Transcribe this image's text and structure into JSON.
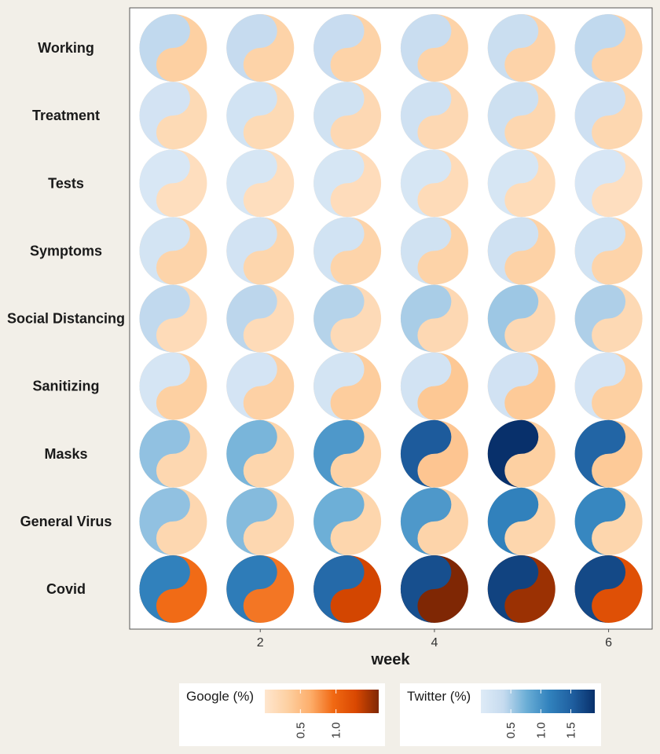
{
  "chart_data": {
    "type": "heatmap",
    "glyph": "yin-yang (left half = Twitter, right half = Google)",
    "xlabel": "week",
    "x": [
      1,
      2,
      3,
      4,
      5,
      6
    ],
    "x_ticks": [
      "2",
      "4",
      "6"
    ],
    "rows": [
      "Working",
      "Treatment",
      "Tests",
      "Symptoms",
      "Social Distancing",
      "Sanitizing",
      "Masks",
      "General Virus",
      "Covid"
    ],
    "series": [
      {
        "name": "Twitter (%)",
        "color_low": "#deebf7",
        "color_high": "#08306b",
        "ticks": [
          "0.5",
          "1.0",
          "1.5"
        ],
        "range": [
          0,
          1.9
        ],
        "values": [
          [
            0.4,
            0.38,
            0.35,
            0.33,
            0.32,
            0.4
          ],
          [
            0.18,
            0.2,
            0.22,
            0.24,
            0.27,
            0.25
          ],
          [
            0.1,
            0.12,
            0.12,
            0.13,
            0.13,
            0.11
          ],
          [
            0.17,
            0.19,
            0.2,
            0.22,
            0.23,
            0.2
          ],
          [
            0.4,
            0.42,
            0.45,
            0.5,
            0.55,
            0.48
          ],
          [
            0.15,
            0.16,
            0.17,
            0.19,
            0.21,
            0.16
          ],
          [
            0.6,
            0.7,
            0.95,
            1.55,
            1.9,
            1.45
          ],
          [
            0.6,
            0.65,
            0.75,
            0.95,
            1.15,
            1.1
          ],
          [
            1.15,
            1.2,
            1.4,
            1.65,
            1.75,
            1.7
          ]
        ]
      },
      {
        "name": "Google (%)",
        "color_low": "#fee6ce",
        "color_high": "#7f2704",
        "ticks": [
          "0.5",
          "1.0"
        ],
        "range": [
          0,
          1.6
        ],
        "values": [
          [
            0.32,
            0.28,
            0.28,
            0.28,
            0.27,
            0.27
          ],
          [
            0.18,
            0.18,
            0.2,
            0.2,
            0.22,
            0.22
          ],
          [
            0.12,
            0.12,
            0.14,
            0.16,
            0.15,
            0.11
          ],
          [
            0.26,
            0.24,
            0.26,
            0.28,
            0.29,
            0.26
          ],
          [
            0.16,
            0.16,
            0.17,
            0.2,
            0.2,
            0.19
          ],
          [
            0.32,
            0.3,
            0.35,
            0.4,
            0.38,
            0.32
          ],
          [
            0.22,
            0.24,
            0.29,
            0.42,
            0.32,
            0.38
          ],
          [
            0.22,
            0.22,
            0.24,
            0.26,
            0.24,
            0.24
          ],
          [
            0.95,
            0.9,
            1.3,
            1.6,
            1.5,
            1.2
          ]
        ]
      }
    ],
    "grid": false
  }
}
